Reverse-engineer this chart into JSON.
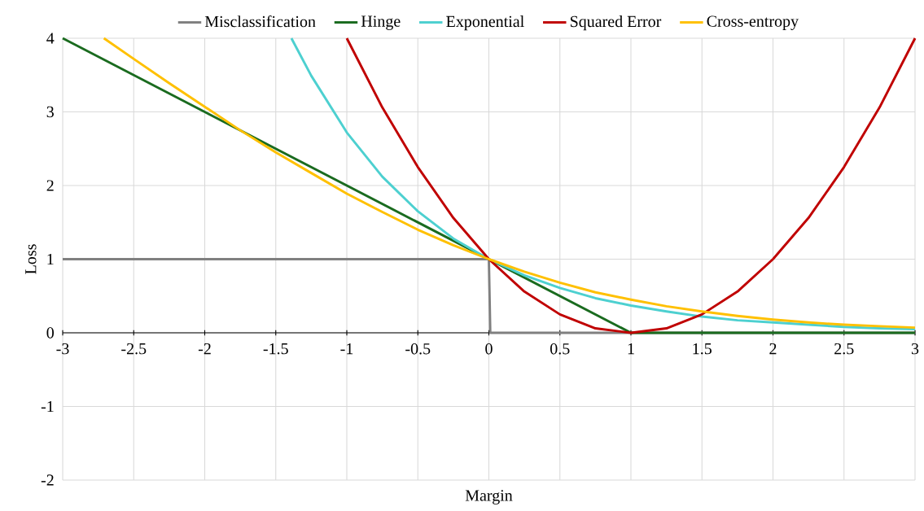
{
  "chart_data": {
    "type": "line",
    "xlabel": "Margin",
    "ylabel": "Loss",
    "xlim": [
      -3,
      3
    ],
    "ylim": [
      -2,
      4
    ],
    "xticks": [
      -3,
      -2.5,
      -2,
      -1.5,
      -1,
      -0.5,
      0,
      0.5,
      1,
      1.5,
      2,
      2.5,
      3
    ],
    "yticks": [
      -2,
      -1,
      0,
      1,
      2,
      3,
      4
    ],
    "grid": true,
    "legend": "top",
    "marker": "none",
    "line_style": "solid",
    "series": [
      {
        "name": "Misclassification",
        "color": "#808080",
        "x": [
          -3,
          0,
          0.01,
          3
        ],
        "values": [
          1,
          1,
          0,
          0
        ]
      },
      {
        "name": "Hinge",
        "color": "#1a6b1f",
        "x": [
          -3,
          1,
          3
        ],
        "values": [
          4,
          0,
          0
        ]
      },
      {
        "name": "Exponential",
        "color": "#4dd0d0",
        "x": [
          -1.39,
          -1.25,
          -1,
          -0.75,
          -0.5,
          -0.25,
          0,
          0.25,
          0.5,
          0.75,
          1,
          1.25,
          1.5,
          1.75,
          2,
          2.25,
          2.5,
          2.75,
          3
        ],
        "values": [
          4,
          3.49,
          2.72,
          2.12,
          1.65,
          1.28,
          1,
          0.78,
          0.61,
          0.47,
          0.37,
          0.29,
          0.22,
          0.17,
          0.14,
          0.11,
          0.08,
          0.06,
          0.05
        ]
      },
      {
        "name": "Squared Error",
        "color": "#c00000",
        "x": [
          -1,
          -0.75,
          -0.5,
          -0.25,
          0,
          0.25,
          0.5,
          0.75,
          1,
          1.25,
          1.5,
          1.75,
          2,
          2.25,
          2.5,
          2.75,
          3
        ],
        "values": [
          4,
          3.06,
          2.25,
          1.56,
          1,
          0.56,
          0.25,
          0.06,
          0,
          0.06,
          0.25,
          0.56,
          1,
          1.56,
          2.25,
          3.06,
          4
        ]
      },
      {
        "name": "Cross-entropy",
        "color": "#ffc000",
        "x": [
          -2.71,
          -2.5,
          -2.25,
          -2,
          -1.75,
          -1.5,
          -1.25,
          -1,
          -0.75,
          -0.5,
          -0.25,
          0,
          0.25,
          0.5,
          0.75,
          1,
          1.25,
          1.5,
          1.75,
          2,
          2.25,
          2.5,
          2.75,
          3
        ],
        "values": [
          4,
          3.72,
          3.39,
          3.07,
          2.75,
          2.45,
          2.17,
          1.89,
          1.64,
          1.4,
          1.19,
          1,
          0.83,
          0.68,
          0.55,
          0.45,
          0.36,
          0.29,
          0.23,
          0.18,
          0.14,
          0.11,
          0.09,
          0.07
        ]
      }
    ]
  }
}
